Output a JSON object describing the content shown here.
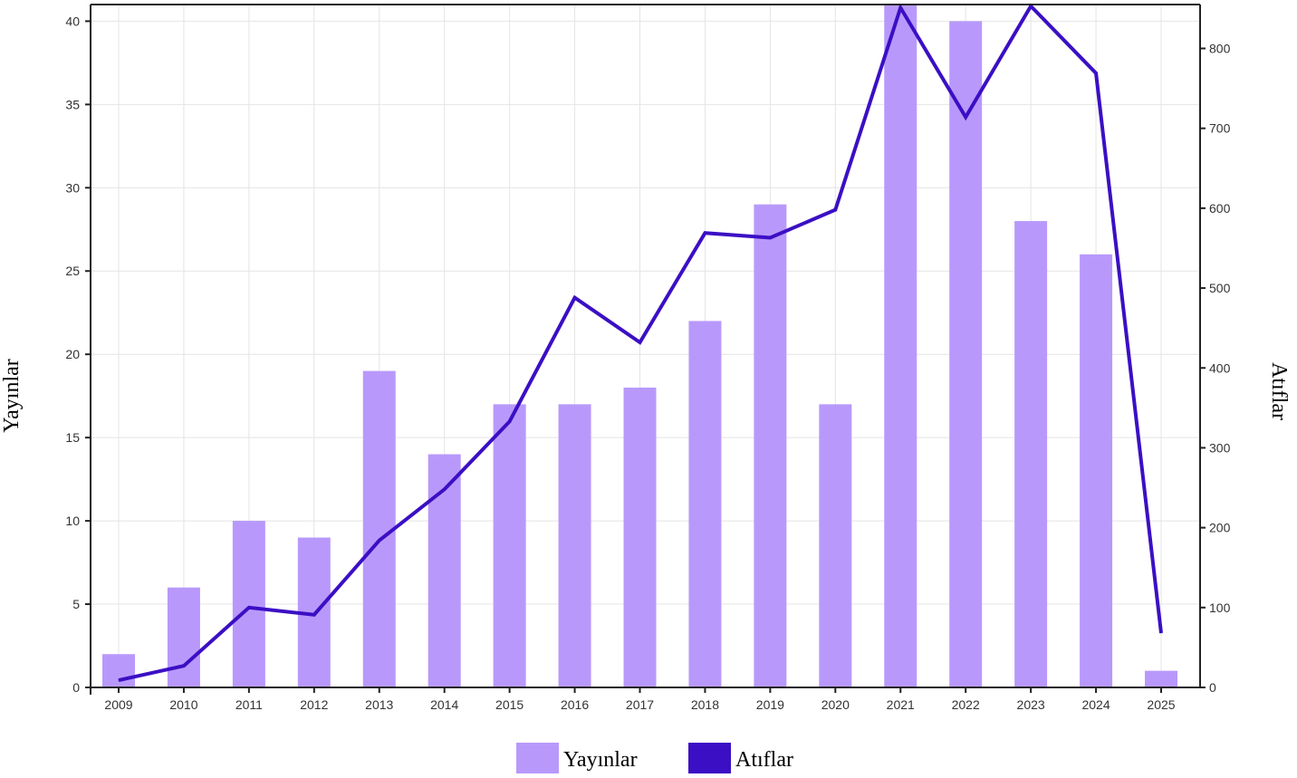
{
  "chart_data": {
    "type": "bar+line",
    "categories": [
      "2009",
      "2010",
      "2011",
      "2012",
      "2013",
      "2014",
      "2015",
      "2016",
      "2017",
      "2018",
      "2019",
      "2020",
      "2021",
      "2022",
      "2023",
      "2024",
      "2025"
    ],
    "series": [
      {
        "name": "Yayınlar",
        "type": "bar",
        "axis": "left",
        "color": "#b899fb",
        "values": [
          2,
          6,
          10,
          9,
          19,
          14,
          17,
          17,
          18,
          22,
          29,
          17,
          41,
          40,
          28,
          26,
          1
        ]
      },
      {
        "name": "Atıflar",
        "type": "line",
        "axis": "right",
        "color": "#3b0fc4",
        "values": [
          9,
          27,
          100,
          91,
          184,
          248,
          333,
          488,
          432,
          569,
          563,
          598,
          851,
          714,
          853,
          769,
          68
        ]
      }
    ],
    "ylabel": "Yayınlar",
    "y2label": "Atıflar",
    "ylim": [
      0,
      41
    ],
    "y2lim": [
      0,
      855
    ],
    "yticks": [
      0,
      5,
      10,
      15,
      20,
      25,
      30,
      35,
      40
    ],
    "y2ticks": [
      0,
      100,
      200,
      300,
      400,
      500,
      600,
      700,
      800
    ],
    "grid": true,
    "legend_position": "bottom-center"
  }
}
